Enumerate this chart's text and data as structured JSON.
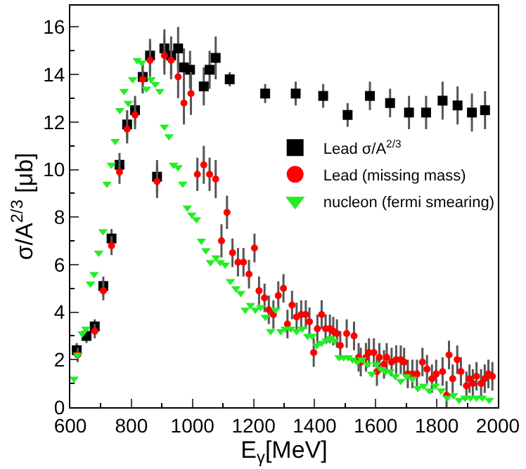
{
  "chart_data": {
    "type": "scatter",
    "xlabel": "E$_{γ}$[MeV]",
    "ylabel": "σ/A$^{2/3}$ [μb]",
    "xlim": [
      600,
      2000
    ],
    "ylim": [
      0,
      16.9
    ],
    "xticks": [
      600,
      800,
      1000,
      1200,
      1400,
      1600,
      1800,
      2000
    ],
    "yticks": [
      0,
      2,
      4,
      6,
      8,
      10,
      12,
      14,
      16
    ],
    "legend": "right",
    "series": [
      {
        "name": "Lead σ/A$^{2/3}$",
        "color": "#000000",
        "marker": "square",
        "x": [
          621,
          653,
          680,
          708,
          735,
          761,
          786,
          812,
          837,
          861,
          884,
          908,
          930,
          953,
          972,
          992,
          1037,
          1056,
          1076,
          1122,
          1238,
          1338,
          1428,
          1508,
          1581,
          1647,
          1709,
          1765,
          1819,
          1868,
          1915,
          1958
        ],
        "values": [
          2.4,
          3.0,
          3.4,
          5.1,
          7.1,
          10.2,
          11.9,
          12.5,
          13.9,
          14.8,
          9.7,
          15.1,
          14.8,
          15.1,
          14.3,
          14.2,
          13.5,
          14.2,
          14.7,
          13.8,
          13.2,
          13.2,
          13.1,
          12.3,
          13.1,
          12.8,
          12.4,
          12.4,
          12.9,
          12.7,
          12.4,
          12.5
        ],
        "errors": [
          0.3,
          0.3,
          0.3,
          0.4,
          0.4,
          0.5,
          0.6,
          0.6,
          0.6,
          0.7,
          0.7,
          0.8,
          0.8,
          0.9,
          0.8,
          0.8,
          0.8,
          0.8,
          0.9,
          0.3,
          0.4,
          0.5,
          0.5,
          0.5,
          0.6,
          0.6,
          0.7,
          0.7,
          0.8,
          0.8,
          0.8,
          0.8
        ]
      },
      {
        "name": "Lead (missing mass)",
        "color": "#ff0000",
        "marker": "circle",
        "x": [
          624,
          680,
          708,
          735,
          761,
          786,
          812,
          837,
          861,
          884,
          908,
          930,
          953,
          972,
          995,
          1016,
          1037,
          1056,
          1076,
          1095,
          1113,
          1131,
          1149,
          1167,
          1185,
          1203,
          1218,
          1236,
          1250,
          1265,
          1281,
          1298,
          1311,
          1326,
          1341,
          1356,
          1371,
          1383,
          1397,
          1409,
          1423,
          1436,
          1450,
          1461,
          1473,
          1484,
          1505,
          1529,
          1544,
          1551,
          1568,
          1578,
          1594,
          1604,
          1612,
          1627,
          1636,
          1652,
          1667,
          1682,
          1693,
          1705,
          1720,
          1735,
          1753,
          1768,
          1784,
          1798,
          1819,
          1832,
          1840,
          1852,
          1867,
          1879,
          1897,
          1907,
          1918,
          1930,
          1945,
          1957,
          1969,
          1982
        ],
        "values": [
          2.2,
          3.2,
          4.9,
          6.8,
          9.9,
          11.7,
          12.3,
          13.8,
          14.6,
          9.5,
          14.8,
          14.6,
          13.9,
          12.8,
          13.2,
          9.8,
          10.2,
          9.8,
          9.6,
          7.0,
          8.2,
          6.5,
          6.1,
          6.1,
          5.6,
          6.7,
          4.9,
          4.6,
          4.1,
          3.9,
          4.7,
          5.0,
          3.5,
          4.3,
          3.8,
          3.9,
          3.9,
          3.6,
          2.3,
          3.3,
          3.9,
          3.3,
          3.3,
          3.2,
          3.1,
          2.6,
          3.1,
          3.0,
          2.1,
          1.9,
          2.1,
          2.3,
          2.3,
          1.5,
          2.1,
          1.8,
          2.1,
          1.9,
          2.0,
          2.0,
          1.9,
          1.4,
          1.4,
          1.4,
          1.9,
          1.6,
          1.2,
          1.4,
          1.5,
          0.5,
          2.2,
          1.2,
          2.0,
          1.5,
          0.9,
          1.2,
          1.0,
          1.3,
          1.0,
          1.2,
          1.4,
          1.3
        ],
        "errors": [
          0.3,
          0.3,
          0.4,
          0.4,
          0.5,
          0.6,
          0.6,
          0.6,
          0.7,
          0.7,
          0.8,
          0.8,
          0.9,
          0.9,
          0.9,
          0.7,
          0.8,
          0.7,
          0.8,
          0.7,
          0.7,
          0.6,
          0.6,
          0.6,
          0.6,
          0.6,
          0.6,
          0.6,
          0.6,
          0.6,
          0.6,
          0.6,
          0.6,
          0.6,
          0.6,
          0.6,
          0.6,
          0.6,
          0.6,
          0.6,
          0.6,
          0.6,
          0.6,
          0.6,
          0.6,
          0.6,
          0.6,
          0.6,
          0.6,
          0.6,
          0.6,
          0.6,
          0.6,
          0.6,
          0.6,
          0.6,
          0.6,
          0.6,
          0.6,
          0.6,
          0.6,
          0.6,
          0.6,
          0.6,
          0.6,
          0.6,
          0.6,
          0.6,
          0.6,
          0.6,
          0.6,
          0.6,
          0.6,
          0.6,
          0.6,
          0.6,
          0.6,
          0.6,
          0.6,
          0.6,
          0.6,
          0.6
        ]
      },
      {
        "name": "nucleon (fermi smearing)",
        "color": "#22ee22",
        "marker": "triangle",
        "x": [
          612,
          624,
          639,
          651,
          666,
          678,
          693,
          707,
          720,
          734,
          747,
          762,
          776,
          790,
          804,
          819,
          834,
          849,
          864,
          878,
          893,
          908,
          923,
          938,
          953,
          968,
          983,
          998,
          1013,
          1029,
          1044,
          1059,
          1077,
          1091,
          1107,
          1124,
          1142,
          1158,
          1173,
          1190,
          1206,
          1223,
          1239,
          1256,
          1272,
          1289,
          1304,
          1322,
          1341,
          1359,
          1377,
          1392,
          1407,
          1423,
          1438,
          1452,
          1465,
          1480,
          1495,
          1510,
          1524,
          1540,
          1555,
          1573,
          1587,
          1602,
          1617,
          1632,
          1647,
          1664,
          1682,
          1701,
          1720,
          1738,
          1757,
          1775,
          1795,
          1814,
          1834,
          1855,
          1873,
          1892,
          1910,
          1930,
          1949,
          1972
        ],
        "values": [
          1.2,
          2.2,
          3.1,
          3.3,
          5.2,
          5.6,
          6.5,
          7.4,
          9.4,
          10.2,
          11.2,
          12.5,
          13.3,
          12.8,
          13.8,
          14.6,
          14.5,
          13.4,
          13.8,
          13.6,
          13.3,
          11.8,
          11.4,
          10.2,
          10.1,
          9.4,
          8.4,
          8.1,
          7.9,
          7.0,
          6.6,
          6.1,
          6.3,
          6.1,
          6.0,
          5.3,
          5.0,
          4.8,
          4.1,
          4.3,
          4.1,
          4.2,
          3.8,
          3.2,
          4.1,
          3.2,
          3.3,
          3.3,
          3.2,
          3.3,
          3.0,
          3.0,
          2.6,
          2.7,
          2.8,
          2.9,
          2.8,
          2.1,
          2.1,
          2.1,
          2.0,
          1.9,
          2.0,
          1.8,
          1.4,
          1.8,
          1.6,
          1.5,
          1.5,
          1.3,
          1.1,
          1.3,
          1.2,
          0.8,
          0.9,
          0.7,
          0.9,
          0.7,
          0.4,
          0.5,
          0.3,
          0.4,
          0.4,
          0.4,
          0.4,
          0.3
        ]
      }
    ]
  }
}
